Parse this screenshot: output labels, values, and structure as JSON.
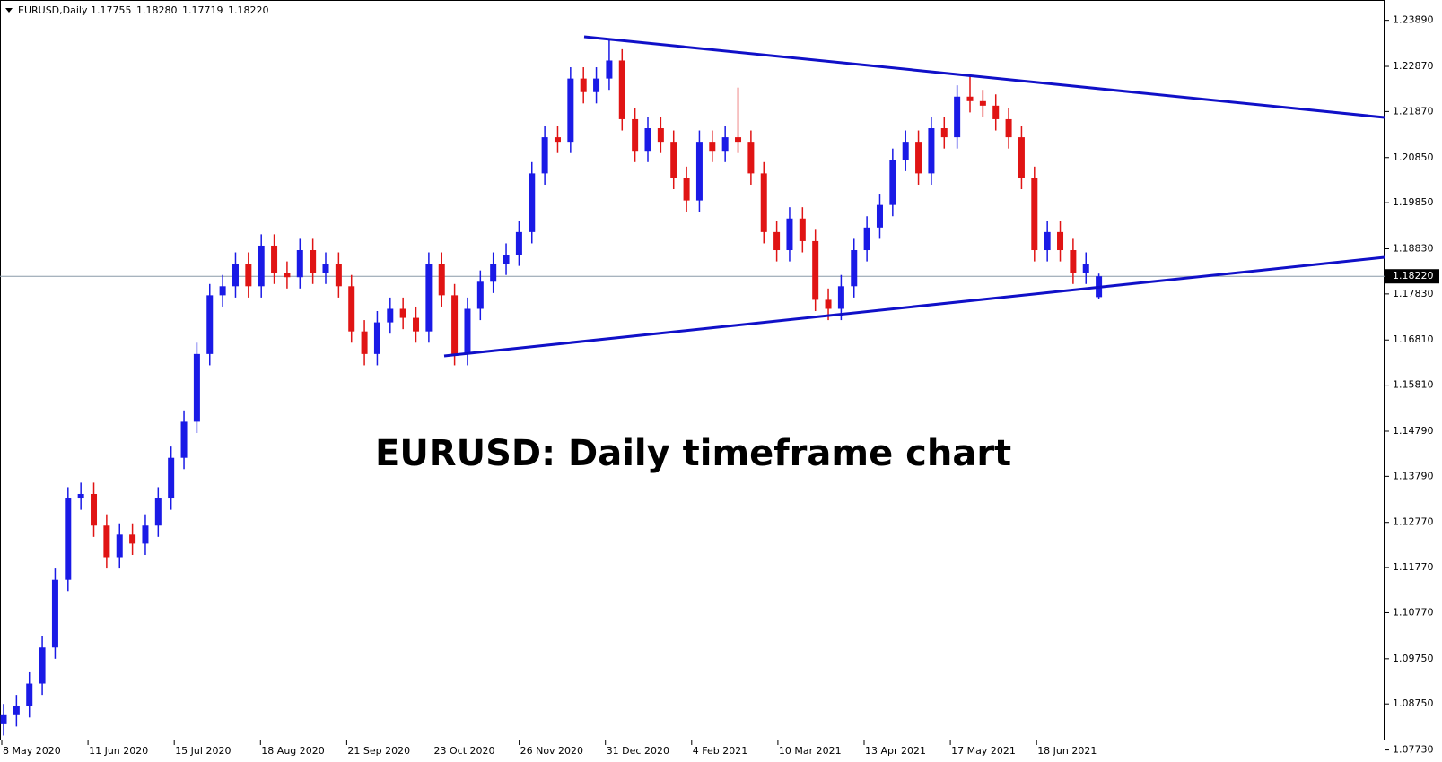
{
  "chart_data": {
    "type": "candlestick",
    "symbol": "EURUSD,Daily",
    "ohlc_labels": [
      {
        "value": 1.17755,
        "label": "1.17755"
      },
      {
        "value": 1.1828,
        "label": "1.18280"
      },
      {
        "value": 1.17719,
        "label": "1.17719"
      },
      {
        "value": 1.1822,
        "label": "1.18220"
      }
    ],
    "current_price": {
      "value": 1.1822,
      "label": "1.18220"
    },
    "annotation": "EURUSD: Daily timeframe chart",
    "up_color": "#1a1ae6",
    "down_color": "#e01414",
    "trendline_color": "#1010c8",
    "ylim": [
      1.0794,
      1.2428
    ],
    "yticks": [
      {
        "value": 1.2389,
        "label": "1.23890"
      },
      {
        "value": 1.2287,
        "label": "1.22870"
      },
      {
        "value": 1.2187,
        "label": "1.21870"
      },
      {
        "value": 1.2085,
        "label": "1.20850"
      },
      {
        "value": 1.1985,
        "label": "1.19850"
      },
      {
        "value": 1.1883,
        "label": "1.18830"
      },
      {
        "value": 1.1783,
        "label": "1.17830"
      },
      {
        "value": 1.1681,
        "label": "1.16810"
      },
      {
        "value": 1.1581,
        "label": "1.15810"
      },
      {
        "value": 1.1479,
        "label": "1.14790"
      },
      {
        "value": 1.1379,
        "label": "1.13790"
      },
      {
        "value": 1.1277,
        "label": "1.12770"
      },
      {
        "value": 1.1177,
        "label": "1.11770"
      },
      {
        "value": 1.1077,
        "label": "1.10770"
      },
      {
        "value": 1.0975,
        "label": "1.09750"
      },
      {
        "value": 1.0875,
        "label": "1.08750"
      },
      {
        "value": 1.0773,
        "label": "1.07730"
      }
    ],
    "xtick_labels": [
      "8 May 2020",
      "11 Jun 2020",
      "15 Jul 2020",
      "18 Aug 2020",
      "21 Sep 2020",
      "23 Oct 2020",
      "26 Nov 2020",
      "31 Dec 2020",
      "4 Feb 2021",
      "10 Mar 2021",
      "13 Apr 2021",
      "17 May 2021",
      "18 Jun 2021"
    ],
    "open": [
      1.083,
      1.085,
      1.087,
      1.092,
      1.1,
      1.115,
      1.133,
      1.134,
      1.127,
      1.12,
      1.125,
      1.123,
      1.127,
      1.133,
      1.142,
      1.15,
      1.165,
      1.178,
      1.18,
      1.185,
      1.18,
      1.189,
      1.183,
      1.182,
      1.188,
      1.183,
      1.185,
      1.18,
      1.17,
      1.165,
      1.172,
      1.175,
      1.173,
      1.17,
      1.185,
      1.178,
      1.165,
      1.175,
      1.181,
      1.185,
      1.187,
      1.192,
      1.205,
      1.213,
      1.212,
      1.226,
      1.223,
      1.226,
      1.23,
      1.217,
      1.21,
      1.215,
      1.212,
      1.204,
      1.199,
      1.212,
      1.21,
      1.213,
      1.212,
      1.205,
      1.192,
      1.188,
      1.195,
      1.19,
      1.177,
      1.175,
      1.18,
      1.188,
      1.193,
      1.198,
      1.208,
      1.212,
      1.205,
      1.215,
      1.213,
      1.222,
      1.221,
      1.22,
      1.217,
      1.213,
      1.204,
      1.188,
      1.192,
      1.188,
      1.183,
      1.1776
    ],
    "high": [
      1.0875,
      1.0895,
      1.0945,
      1.1025,
      1.1175,
      1.1355,
      1.1365,
      1.1365,
      1.1295,
      1.1275,
      1.1275,
      1.1295,
      1.1355,
      1.1445,
      1.1525,
      1.1675,
      1.1805,
      1.1825,
      1.1875,
      1.1875,
      1.1915,
      1.1915,
      1.1855,
      1.1905,
      1.1905,
      1.1875,
      1.1875,
      1.1825,
      1.1725,
      1.1745,
      1.1775,
      1.1775,
      1.1755,
      1.1875,
      1.1875,
      1.1805,
      1.1775,
      1.1835,
      1.1875,
      1.1895,
      1.1945,
      1.2075,
      1.2155,
      1.2155,
      1.2285,
      1.2285,
      1.2285,
      1.2345,
      1.2325,
      1.2195,
      1.2175,
      1.2175,
      1.2145,
      1.2065,
      1.2145,
      1.2145,
      1.2155,
      1.224,
      1.2145,
      1.2075,
      1.1945,
      1.1975,
      1.1975,
      1.1925,
      1.1795,
      1.1825,
      1.1905,
      1.1955,
      1.2005,
      1.2105,
      1.2145,
      1.2145,
      1.2175,
      1.2175,
      1.2245,
      1.2265,
      1.2235,
      1.2225,
      1.2195,
      1.2155,
      1.2065,
      1.1945,
      1.1945,
      1.1905,
      1.1875,
      1.1828
    ],
    "low": [
      1.0805,
      1.0825,
      1.0845,
      1.0895,
      1.0975,
      1.1125,
      1.1305,
      1.1245,
      1.1175,
      1.1175,
      1.1205,
      1.1205,
      1.1245,
      1.1305,
      1.1395,
      1.1475,
      1.1625,
      1.1755,
      1.1775,
      1.1775,
      1.1775,
      1.1805,
      1.1795,
      1.1795,
      1.1805,
      1.1805,
      1.1775,
      1.1675,
      1.1625,
      1.1625,
      1.1695,
      1.1705,
      1.1675,
      1.1675,
      1.1755,
      1.1625,
      1.1625,
      1.1725,
      1.1785,
      1.1825,
      1.1845,
      1.1895,
      1.2025,
      1.2095,
      1.2095,
      1.2205,
      1.2205,
      1.2235,
      1.2145,
      1.2075,
      1.2075,
      1.2095,
      1.2015,
      1.1965,
      1.1965,
      1.2075,
      1.2075,
      1.2095,
      1.2025,
      1.1895,
      1.1855,
      1.1855,
      1.1875,
      1.1745,
      1.1725,
      1.1725,
      1.1775,
      1.1855,
      1.1905,
      1.1955,
      1.2055,
      1.2025,
      1.2025,
      1.2105,
      1.2105,
      1.2185,
      1.2175,
      1.2145,
      1.2105,
      1.2015,
      1.1855,
      1.1855,
      1.1855,
      1.1805,
      1.1805,
      1.1772
    ],
    "close": [
      1.085,
      1.087,
      1.092,
      1.1,
      1.115,
      1.133,
      1.134,
      1.127,
      1.12,
      1.125,
      1.123,
      1.127,
      1.133,
      1.142,
      1.15,
      1.165,
      1.178,
      1.18,
      1.185,
      1.18,
      1.189,
      1.183,
      1.182,
      1.188,
      1.183,
      1.185,
      1.18,
      1.17,
      1.165,
      1.172,
      1.175,
      1.173,
      1.17,
      1.185,
      1.178,
      1.165,
      1.175,
      1.181,
      1.185,
      1.187,
      1.192,
      1.205,
      1.213,
      1.212,
      1.226,
      1.223,
      1.226,
      1.23,
      1.217,
      1.21,
      1.215,
      1.212,
      1.204,
      1.199,
      1.212,
      1.21,
      1.213,
      1.212,
      1.205,
      1.192,
      1.188,
      1.195,
      1.19,
      1.177,
      1.175,
      1.18,
      1.188,
      1.193,
      1.198,
      1.208,
      1.212,
      1.205,
      1.215,
      1.213,
      1.222,
      1.221,
      1.22,
      1.217,
      1.213,
      1.204,
      1.188,
      1.192,
      1.188,
      1.183,
      1.185,
      1.1822
    ]
  }
}
